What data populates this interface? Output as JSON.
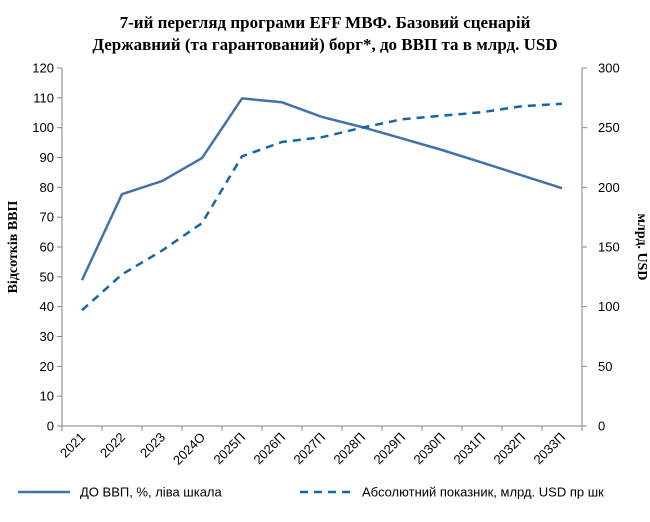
{
  "chart_data": {
    "type": "line",
    "title_line1": "7-ий перегляд програми EFF МВФ. Базовий сценарій",
    "title_line2": "Державний (та гарантований) борг*, до ВВП та в млрд. USD",
    "ylabel_left": "Відсотків ВВП",
    "ylabel_right": "млрд. USD",
    "categories": [
      "2021",
      "2022",
      "2023",
      "2024О",
      "2025П",
      "2026П",
      "2027П",
      "2028П",
      "2029П",
      "2030П",
      "2031П",
      "2032П",
      "2033П"
    ],
    "ylim_left": [
      0,
      120
    ],
    "yticks_left": [
      "0",
      "10",
      "20",
      "30",
      "40",
      "50",
      "60",
      "70",
      "80",
      "90",
      "100",
      "110",
      "120"
    ],
    "ylim_right": [
      0,
      300
    ],
    "yticks_right": [
      "0",
      "50",
      "100",
      "150",
      "200",
      "250",
      "300"
    ],
    "grid": false,
    "legend_position": "bottom",
    "series": [
      {
        "name": "ДО ВВП,  %, ліва шкала",
        "axis": "left",
        "style": "solid",
        "color": "#4472A8",
        "values": [
          48.9,
          77.7,
          82.1,
          89.8,
          109.8,
          108.5,
          103.6,
          100.2,
          96.4,
          92.5,
          88.3,
          84.0,
          79.7
        ]
      },
      {
        "name": "Абсолютний показник, млрд. USD пр шк",
        "axis": "right",
        "style": "dashed",
        "color": "#1565A8",
        "values": [
          97,
          127,
          147,
          170,
          226,
          238,
          242,
          250,
          257,
          260,
          263,
          268,
          270
        ]
      }
    ]
  }
}
